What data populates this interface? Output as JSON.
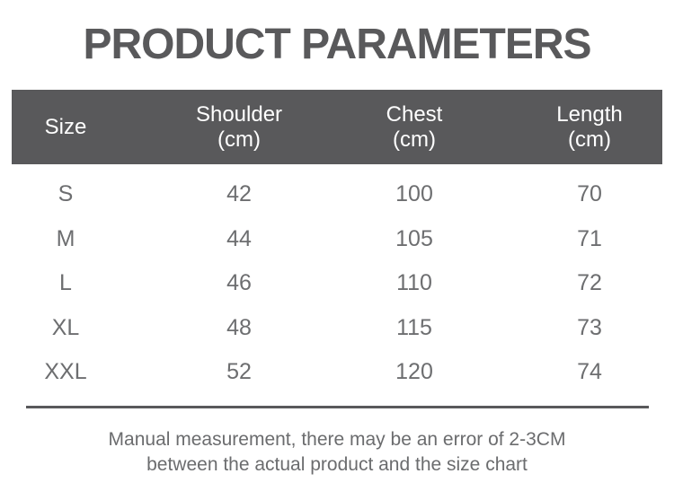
{
  "chart_data": {
    "type": "table",
    "title": "PRODUCT PARAMETERS",
    "columns": [
      "Size",
      "Shoulder (cm)",
      "Chest (cm)",
      "Length (cm)"
    ],
    "rows": [
      [
        "S",
        "42",
        "100",
        "70"
      ],
      [
        "M",
        "44",
        "105",
        "71"
      ],
      [
        "L",
        "46",
        "110",
        "72"
      ],
      [
        "XL",
        "48",
        "115",
        "73"
      ],
      [
        "XXL",
        "52",
        "120",
        "74"
      ]
    ],
    "note": "Manual measurement, there may be an error of 2-3CM between the actual product and the size chart"
  },
  "header": {
    "columns": [
      {
        "label": "Size",
        "unit": ""
      },
      {
        "label": "Shoulder",
        "unit": "(cm)"
      },
      {
        "label": "Chest",
        "unit": "(cm)"
      },
      {
        "label": "Length",
        "unit": "(cm)"
      }
    ]
  },
  "note": {
    "line1": "Manual measurement, there may be an error of 2-3CM",
    "line2": "between the actual product and the size chart"
  },
  "colors": {
    "header_bg": "#59595b",
    "header_text": "#ffffff",
    "title_text": "#59595b",
    "body_text": "#6d6e70",
    "divider": "#59595b"
  }
}
